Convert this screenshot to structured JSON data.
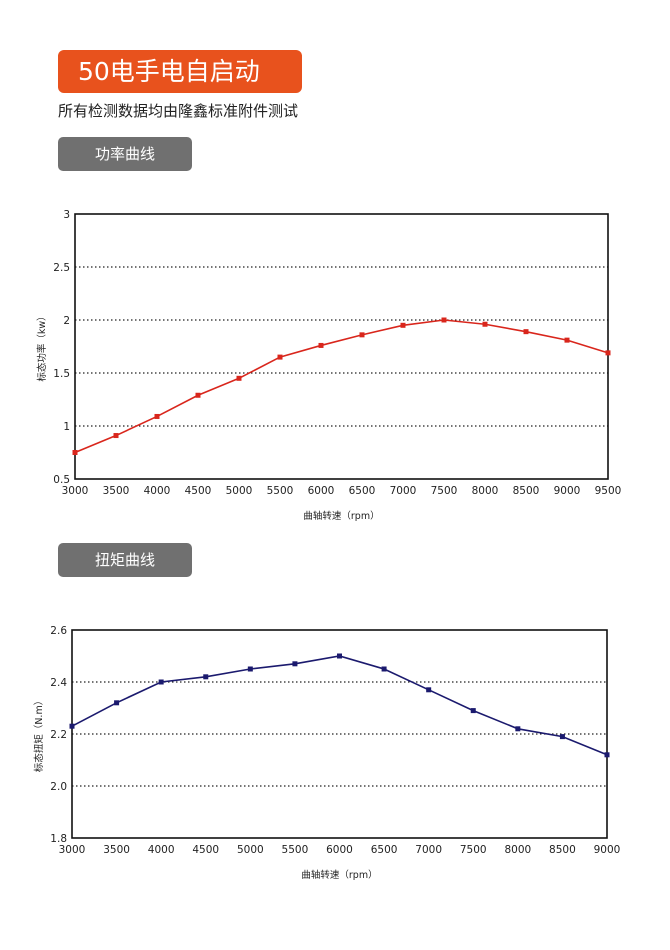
{
  "header": {
    "title": "50电手电自启动",
    "subtitle": "所有检测数据均由隆鑫标准附件测试"
  },
  "sections": {
    "power_tab": "功率曲线",
    "torque_tab": "扭矩曲线"
  },
  "colors": {
    "banner": "#e8521d",
    "tab": "#707070",
    "power_series": "#d9261c",
    "torque_series": "#1b1a6e"
  },
  "chart_data": [
    {
      "type": "line",
      "title": "",
      "xlabel": "曲轴转速（rpm）",
      "ylabel": "标态功率（kw）",
      "x": [
        3000,
        3500,
        4000,
        4500,
        5000,
        5500,
        6000,
        6500,
        7000,
        7500,
        8000,
        8500,
        9000,
        9500
      ],
      "series": [
        {
          "values": [
            0.75,
            0.91,
            1.09,
            1.29,
            1.45,
            1.65,
            1.76,
            1.86,
            1.95,
            2.0,
            1.96,
            1.89,
            1.81,
            1.69
          ]
        }
      ],
      "xticks": [
        "3000",
        "3500",
        "4000",
        "4500",
        "5000",
        "5500",
        "6000",
        "6500",
        "7000",
        "7500",
        "8000",
        "8500",
        "9000",
        "9500"
      ],
      "yticks": [
        "0.5",
        "1",
        "1.5",
        "2",
        "2.5",
        "3"
      ],
      "xlim": [
        3000,
        9500
      ],
      "ylim": [
        0.5,
        3
      ],
      "grid": "horizontal dotted"
    },
    {
      "type": "line",
      "title": "",
      "xlabel": "曲轴转速（rpm）",
      "ylabel": "标态扭矩（N.m）",
      "x": [
        3000,
        3500,
        4000,
        4500,
        5000,
        5500,
        6000,
        6500,
        7000,
        7500,
        8000,
        8500,
        9000
      ],
      "series": [
        {
          "values": [
            2.23,
            2.32,
            2.4,
            2.42,
            2.45,
            2.47,
            2.5,
            2.45,
            2.37,
            2.29,
            2.22,
            2.19,
            2.12
          ]
        }
      ],
      "xticks": [
        "3000",
        "3500",
        "4000",
        "4500",
        "5000",
        "5500",
        "6000",
        "6500",
        "7000",
        "7500",
        "8000",
        "8500",
        "9000"
      ],
      "yticks": [
        "1.8",
        "2.0",
        "2.2",
        "2.4",
        "2.6"
      ],
      "xlim": [
        3000,
        9000
      ],
      "ylim": [
        1.8,
        2.6
      ],
      "grid": "horizontal dotted"
    }
  ]
}
